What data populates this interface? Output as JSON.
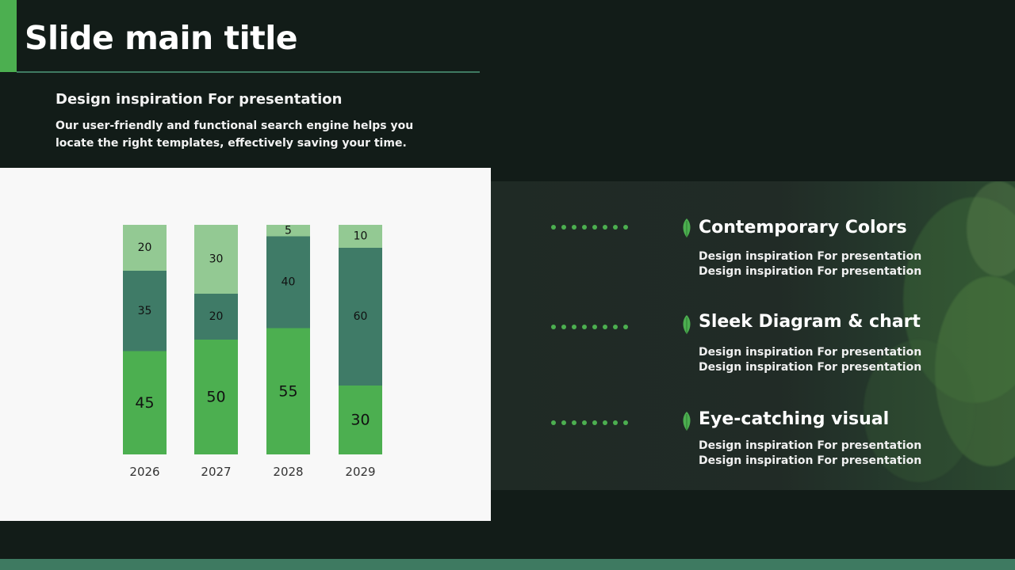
{
  "slide": {
    "title": "Slide main title",
    "subtitle": "Design inspiration For presentation",
    "description_line1": "Our user-friendly and functional search engine helps you",
    "description_line2": "locate the right templates, effectively saving your time."
  },
  "colors": {
    "background": "#121c18",
    "accent_green": "#4caf50",
    "dark_green": "#3f7b67",
    "light_green": "#93c993",
    "chart_panel": "#f8f8f8",
    "bottom_bar": "#3e7a61"
  },
  "chart_data": {
    "type": "bar",
    "stacked": true,
    "categories": [
      "2026",
      "2027",
      "2028",
      "2029"
    ],
    "series": [
      {
        "values": [
          45,
          50,
          55,
          30
        ],
        "color": "#4caf50"
      },
      {
        "values": [
          35,
          20,
          40,
          60
        ],
        "color": "#3f7b67"
      },
      {
        "values": [
          20,
          30,
          5,
          10
        ],
        "color": "#93c993"
      }
    ],
    "ylim": [
      0,
      100
    ],
    "grid": false,
    "legend": "none"
  },
  "features": [
    {
      "title": "Contemporary Colors",
      "line1": "Design inspiration For presentation",
      "line2": "Design inspiration For presentation",
      "icon": "leaf-icon"
    },
    {
      "title": "Sleek Diagram & chart",
      "line1": "Design inspiration For presentation",
      "line2": "Design inspiration For presentation",
      "icon": "leaf-icon"
    },
    {
      "title": "Eye-catching visual",
      "line1": "Design inspiration For presentation",
      "line2": "Design inspiration For presentation",
      "icon": "leaf-icon"
    }
  ]
}
